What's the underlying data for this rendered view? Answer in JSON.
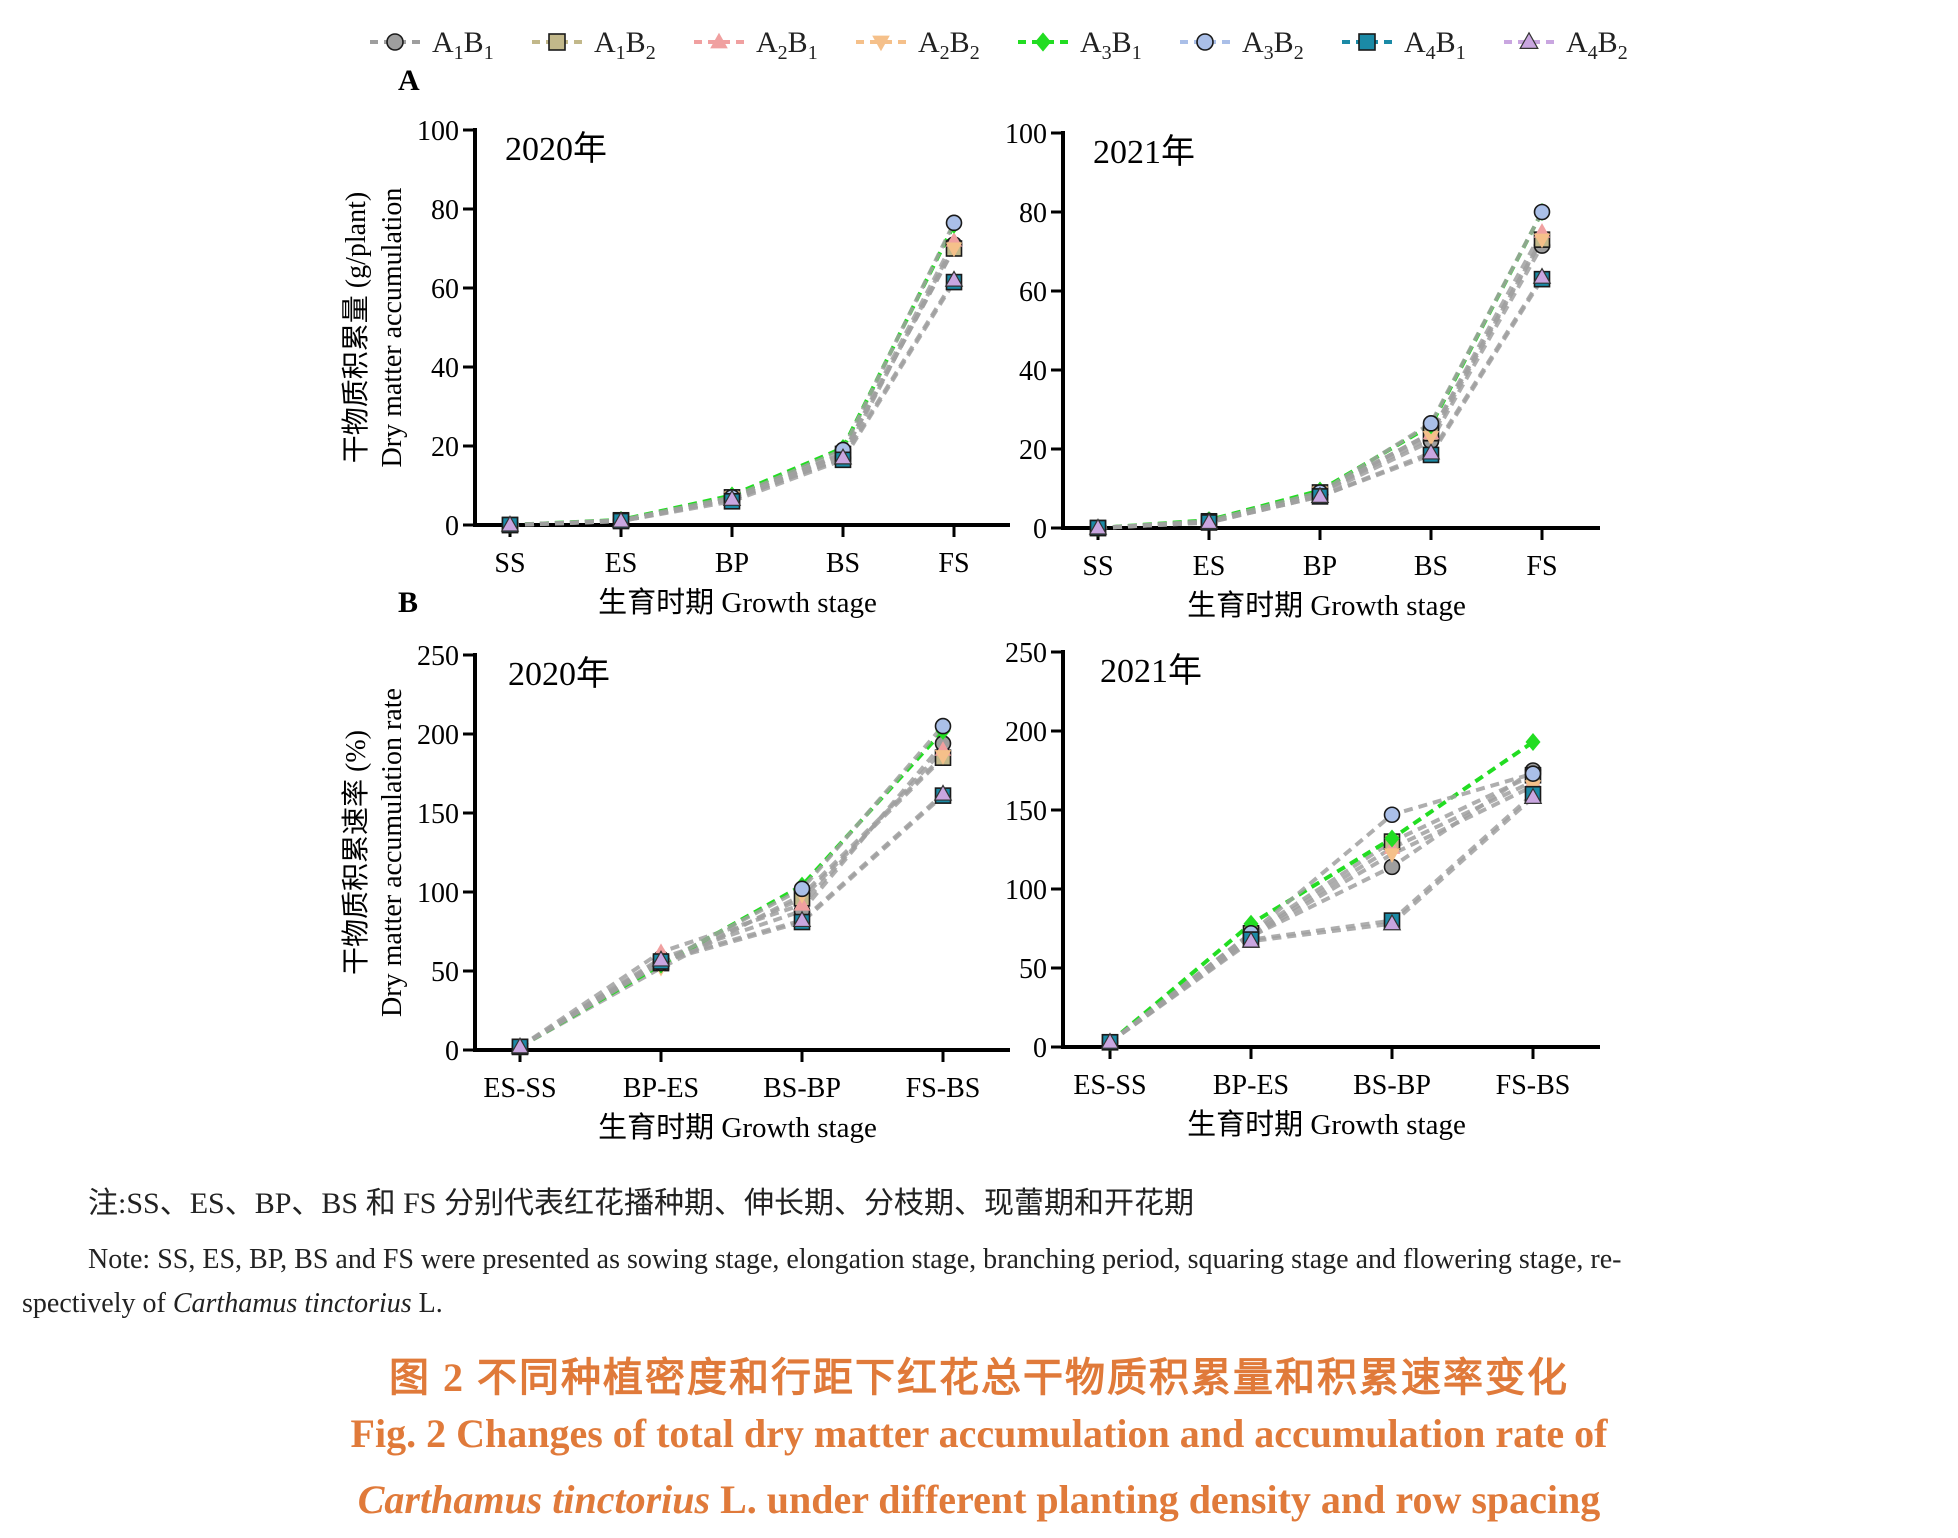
{
  "legend": [
    {
      "name": "A1B1",
      "base": "A",
      "s1": "1",
      "mid": "B",
      "s2": "1",
      "color": "#9e9e9e",
      "marker": "circle"
    },
    {
      "name": "A1B2",
      "base": "A",
      "s1": "1",
      "mid": "B",
      "s2": "2",
      "color": "#c2b88a",
      "marker": "square"
    },
    {
      "name": "A2B1",
      "base": "A",
      "s1": "2",
      "mid": "B",
      "s2": "1",
      "color": "#f0a0a0",
      "marker": "triangle-up"
    },
    {
      "name": "A2B2",
      "base": "A",
      "s1": "2",
      "mid": "B",
      "s2": "2",
      "color": "#f5c08a",
      "marker": "triangle-down"
    },
    {
      "name": "A3B1",
      "base": "A",
      "s1": "3",
      "mid": "B",
      "s2": "1",
      "color": "#22dd22",
      "marker": "diamond"
    },
    {
      "name": "A3B2",
      "base": "A",
      "s1": "3",
      "mid": "B",
      "s2": "2",
      "color": "#aabfe8",
      "marker": "circle"
    },
    {
      "name": "A4B1",
      "base": "A",
      "s1": "4",
      "mid": "B",
      "s2": "1",
      "color": "#1b8aa6",
      "marker": "square"
    },
    {
      "name": "A4B2",
      "base": "A",
      "s1": "4",
      "mid": "B",
      "s2": "2",
      "color": "#c9a6e0",
      "marker": "triangle-up"
    }
  ],
  "panel_labels": {
    "a": "A",
    "b": "B"
  },
  "chart_data": [
    {
      "type": "line",
      "panel": "A",
      "year_label": "2020年",
      "ylabel_cn": "干物质积累量 (g/plant)",
      "ylabel_en": "Dry matter accumulation",
      "xlabel": "生育时期  Growth stage",
      "categories": [
        "SS",
        "ES",
        "BP",
        "BS",
        "FS"
      ],
      "ylim": [
        0,
        100
      ],
      "yticks": [
        0,
        20,
        40,
        60,
        80,
        100
      ],
      "series": [
        {
          "name": "A1B1",
          "values": [
            0,
            1,
            6.5,
            17,
            71
          ]
        },
        {
          "name": "A1B2",
          "values": [
            0,
            1.2,
            7,
            18,
            70
          ]
        },
        {
          "name": "A2B1",
          "values": [
            0,
            1,
            6.5,
            18,
            72
          ]
        },
        {
          "name": "A2B2",
          "values": [
            0,
            1.1,
            7,
            18,
            70
          ]
        },
        {
          "name": "A3B1",
          "values": [
            0,
            1.3,
            7.5,
            19.5,
            76
          ]
        },
        {
          "name": "A3B2",
          "values": [
            0,
            1.2,
            7,
            19,
            76.5
          ]
        },
        {
          "name": "A4B1",
          "values": [
            0,
            1,
            6,
            16.5,
            61.5
          ]
        },
        {
          "name": "A4B2",
          "values": [
            0,
            1,
            6.5,
            17,
            62
          ]
        }
      ]
    },
    {
      "type": "line",
      "panel": "A",
      "year_label": "2021年",
      "xlabel": "生育时期  Growth stage",
      "categories": [
        "SS",
        "ES",
        "BP",
        "BS",
        "FS"
      ],
      "ylim": [
        0,
        100
      ],
      "yticks": [
        0,
        20,
        40,
        60,
        80,
        100
      ],
      "series": [
        {
          "name": "A1B1",
          "values": [
            0,
            1.5,
            8.5,
            22,
            71.5
          ]
        },
        {
          "name": "A1B2",
          "values": [
            0,
            1.7,
            9,
            24,
            73
          ]
        },
        {
          "name": "A2B1",
          "values": [
            0,
            1.6,
            9,
            24,
            75
          ]
        },
        {
          "name": "A2B2",
          "values": [
            0,
            1.6,
            9,
            23,
            73
          ]
        },
        {
          "name": "A3B1",
          "values": [
            0,
            2,
            9.5,
            26,
            80
          ]
        },
        {
          "name": "A3B2",
          "values": [
            0,
            1.8,
            9,
            26.5,
            80
          ]
        },
        {
          "name": "A4B1",
          "values": [
            0,
            1.4,
            8,
            18.5,
            63
          ]
        },
        {
          "name": "A4B2",
          "values": [
            0,
            1.4,
            8,
            19,
            63.5
          ]
        }
      ]
    },
    {
      "type": "line",
      "panel": "B",
      "year_label": "2020年",
      "ylabel_cn": "干物质积累速率 (%)",
      "ylabel_en": "Dry matter accumulation rate",
      "xlabel": "生育时期  Growth stage",
      "categories": [
        "ES-SS",
        "BP-ES",
        "BS-BP",
        "FS-BS"
      ],
      "ylim": [
        0,
        250
      ],
      "yticks": [
        0,
        50,
        100,
        150,
        200,
        250
      ],
      "series": [
        {
          "name": "A1B1",
          "values": [
            2,
            58,
            88,
            194
          ]
        },
        {
          "name": "A1B2",
          "values": [
            2,
            55,
            96,
            185
          ]
        },
        {
          "name": "A2B1",
          "values": [
            2,
            62,
            92,
            190
          ]
        },
        {
          "name": "A2B2",
          "values": [
            2,
            52,
            98,
            186
          ]
        },
        {
          "name": "A3B1",
          "values": [
            2,
            54,
            104,
            202
          ]
        },
        {
          "name": "A3B2",
          "values": [
            2,
            55,
            102,
            205
          ]
        },
        {
          "name": "A4B1",
          "values": [
            2,
            56,
            81,
            161
          ]
        },
        {
          "name": "A4B2",
          "values": [
            2,
            57,
            82,
            162
          ]
        }
      ]
    },
    {
      "type": "line",
      "panel": "B",
      "year_label": "2021年",
      "xlabel": "生育时期  Growth stage",
      "categories": [
        "ES-SS",
        "BP-ES",
        "BS-BP",
        "FS-BS"
      ],
      "ylim": [
        0,
        250
      ],
      "yticks": [
        0,
        50,
        100,
        150,
        200,
        250
      ],
      "series": [
        {
          "name": "A1B1",
          "values": [
            3,
            70,
            114,
            175
          ]
        },
        {
          "name": "A1B2",
          "values": [
            3,
            72,
            130,
            172
          ]
        },
        {
          "name": "A2B1",
          "values": [
            3,
            71,
            126,
            168
          ]
        },
        {
          "name": "A2B2",
          "values": [
            3,
            70,
            122,
            165
          ]
        },
        {
          "name": "A3B1",
          "values": [
            3,
            78,
            132,
            193
          ]
        },
        {
          "name": "A3B2",
          "values": [
            3,
            72,
            147,
            173
          ]
        },
        {
          "name": "A4B1",
          "values": [
            3,
            68,
            80,
            160
          ]
        },
        {
          "name": "A4B2",
          "values": [
            3,
            67,
            78,
            158
          ]
        }
      ]
    }
  ],
  "notes": {
    "cn": "注:SS、ES、BP、BS 和 FS 分别代表红花播种期、伸长期、分枝期、现蕾期和开花期",
    "en_line1": "Note: SS, ES, BP, BS and FS were presented as sowing stage, elongation stage, branching period, squaring stage and flowering stage, re-",
    "en_line2_pre": "spectively of ",
    "en_line2_species": "Carthamus tinctorius",
    "en_line2_post": " L."
  },
  "caption": {
    "cn": "图 2    不同种植密度和行距下红花总干物质积累量和积累速率变化",
    "en1": "Fig. 2    Changes of total dry matter accumulation and accumulation rate of",
    "en2_species": "Carthamus tinctorius",
    "en2_post": " L.  under different planting density and row spacing"
  }
}
